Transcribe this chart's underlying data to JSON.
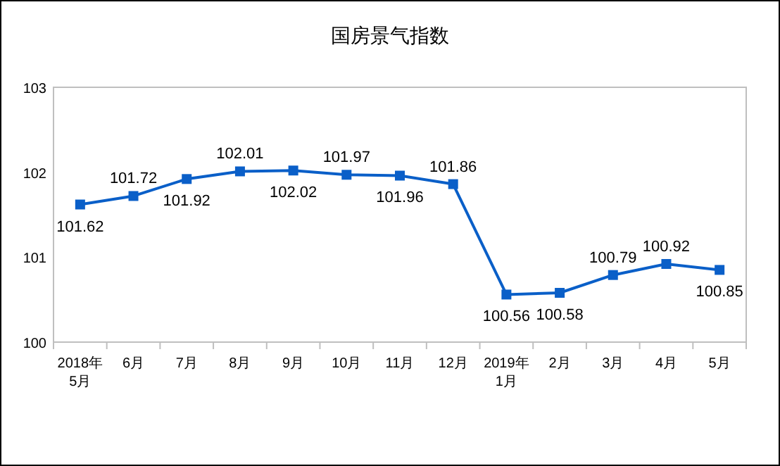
{
  "chart_data": {
    "type": "line",
    "title": "国房景气指数",
    "categories": [
      "2018年\n5月",
      "6月",
      "7月",
      "8月",
      "9月",
      "10月",
      "11月",
      "12月",
      "2019年\n1月",
      "2月",
      "3月",
      "4月",
      "5月"
    ],
    "series": [
      {
        "color": "#0a5fc8",
        "values": [
          101.62,
          101.72,
          101.92,
          102.01,
          102.02,
          101.97,
          101.96,
          101.86,
          100.56,
          100.58,
          100.79,
          100.92,
          100.85
        ]
      }
    ],
    "ylim": [
      100,
      103
    ],
    "yticks": [
      100,
      101,
      102,
      103
    ],
    "marker": "square",
    "data_labels": true,
    "grid": false
  }
}
